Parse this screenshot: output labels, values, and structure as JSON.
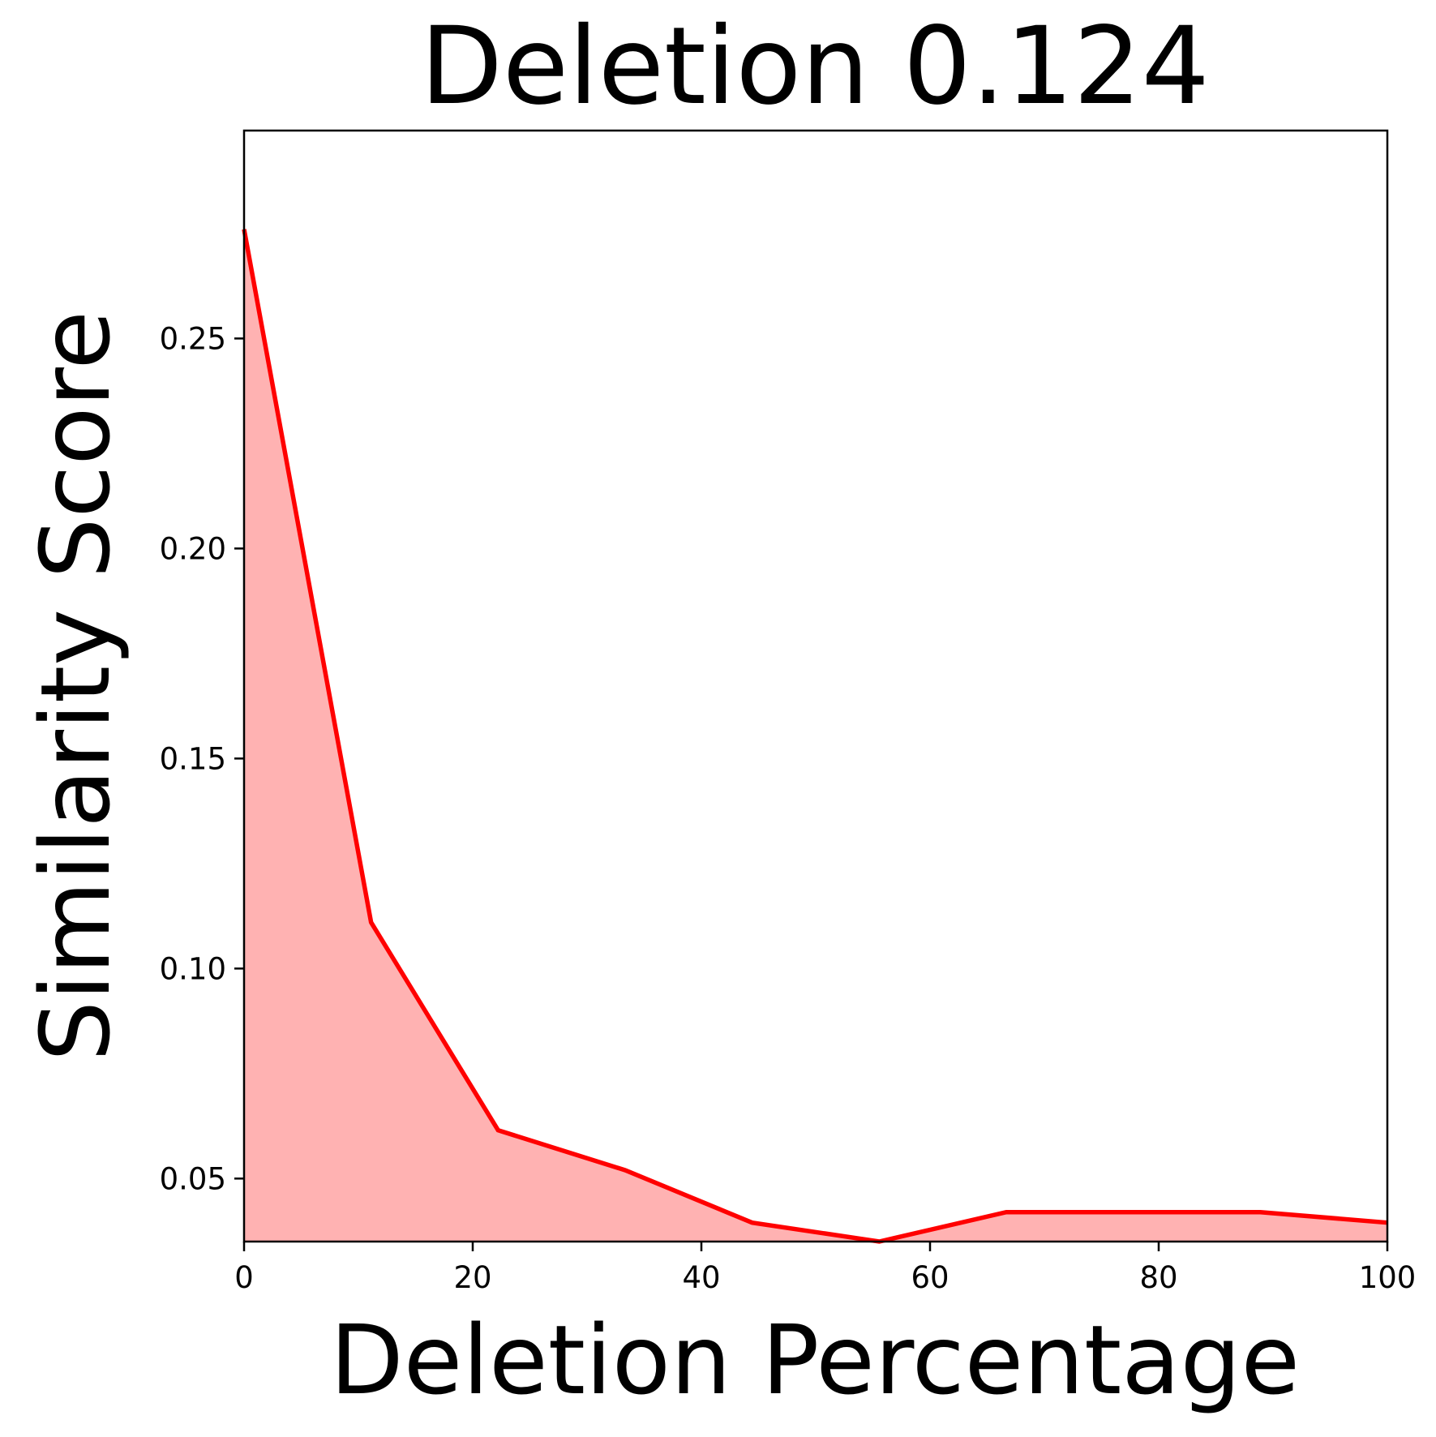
{
  "chart_data": {
    "type": "area",
    "title": "Deletion 0.124",
    "xlabel": "Deletion Percentage",
    "ylabel": "Similarity Score",
    "xlim": [
      0,
      100
    ],
    "ylim": [
      0.035,
      0.2995
    ],
    "x_ticks": [
      0,
      20,
      40,
      60,
      80,
      100
    ],
    "x_tick_labels": [
      "0",
      "20",
      "40",
      "60",
      "80",
      "100"
    ],
    "y_ticks": [
      0.05,
      0.1,
      0.15,
      0.2,
      0.25
    ],
    "y_tick_labels": [
      "0.05",
      "0.10",
      "0.15",
      "0.20",
      "0.25"
    ],
    "grid": false,
    "legend": "none",
    "series": [
      {
        "x": [
          0,
          11.11,
          22.22,
          33.33,
          44.44,
          55.56,
          66.67,
          77.78,
          88.89,
          100
        ],
        "y": [
          0.276,
          0.111,
          0.0615,
          0.052,
          0.0395,
          0.035,
          0.042,
          0.042,
          0.042,
          0.0395
        ],
        "line_color": "#ff0000",
        "fill_color": "#ff0000",
        "fill_opacity": 0.3
      }
    ]
  }
}
